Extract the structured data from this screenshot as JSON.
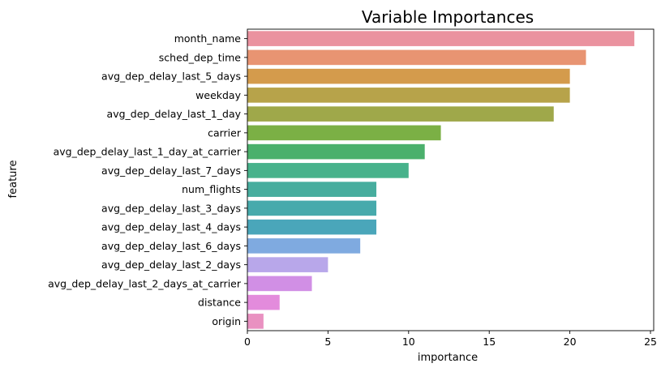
{
  "chart_data": {
    "type": "bar",
    "orientation": "horizontal",
    "title": "Variable Importances",
    "xlabel": "importance",
    "ylabel": "feature",
    "xlim": [
      0,
      25.2
    ],
    "xticks": [
      0,
      5,
      10,
      15,
      20,
      25
    ],
    "grid": false,
    "categories": [
      "month_name",
      "sched_dep_time",
      "avg_dep_delay_last_5_days",
      "weekday",
      "avg_dep_delay_last_1_day",
      "carrier",
      "avg_dep_delay_last_1_day_at_carrier",
      "avg_dep_delay_last_7_days",
      "num_flights",
      "avg_dep_delay_last_3_days",
      "avg_dep_delay_last_4_days",
      "avg_dep_delay_last_6_days",
      "avg_dep_delay_last_2_days",
      "avg_dep_delay_last_2_days_at_carrier",
      "distance",
      "origin"
    ],
    "values": [
      24,
      21,
      20,
      20,
      19,
      12,
      11,
      10,
      8,
      8,
      8,
      7,
      5,
      4,
      2,
      1
    ],
    "colors": [
      "#ea929f",
      "#e89472",
      "#d49b4c",
      "#b7a34a",
      "#9fa84a",
      "#7bb045",
      "#4bb06c",
      "#47b28b",
      "#47ad9e",
      "#47aaac",
      "#4aa6ba",
      "#7faae0",
      "#b8a7ea",
      "#d18fe5",
      "#e38bdc",
      "#e991c1"
    ]
  }
}
